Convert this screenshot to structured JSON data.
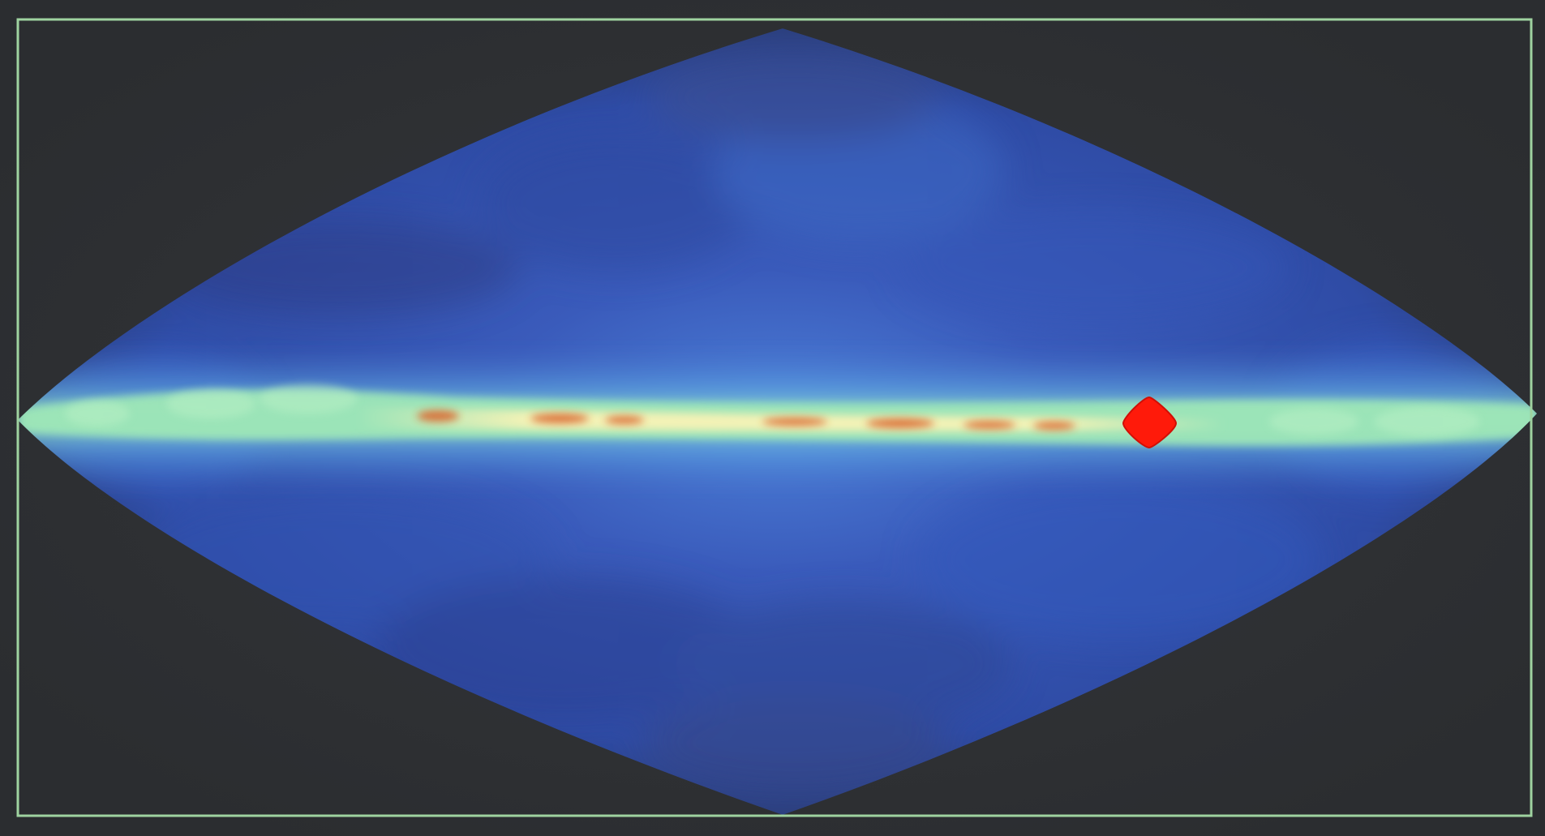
{
  "image": {
    "background_color": "#2c2e30",
    "frame_color": "#9fd3a0",
    "sky_colors": {
      "outer": "#2f3b63",
      "mid": "#3550a8",
      "inner": "#4a7fd1",
      "plane_band": "#9de6b8",
      "plane_core": "#f3f2b6",
      "hot_spots": "#d9662e"
    },
    "marker": {
      "color": "#ff1a0a",
      "icon": "red-diamond-marker-icon"
    }
  }
}
